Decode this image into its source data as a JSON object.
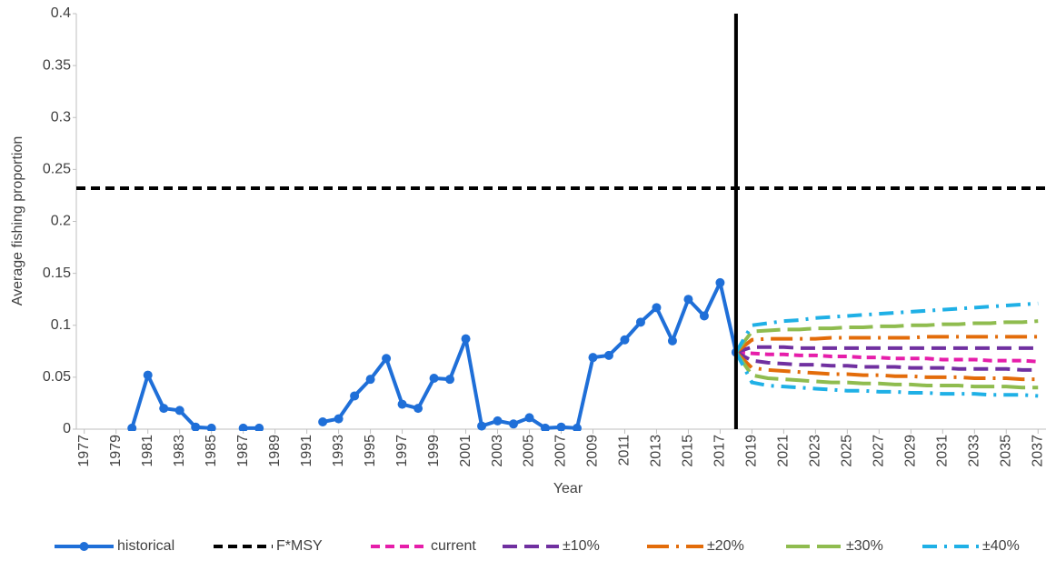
{
  "chart_data": {
    "type": "line",
    "x_label": "Year",
    "y_label": "Average fishing proportion",
    "xlim": [
      1976.5,
      2037.5
    ],
    "xticks": [
      1977,
      1979,
      1981,
      1983,
      1985,
      1987,
      1989,
      1991,
      1993,
      1995,
      1997,
      1999,
      2001,
      2003,
      2005,
      2007,
      2009,
      2011,
      2013,
      2015,
      2017,
      2019,
      2021,
      2023,
      2025,
      2027,
      2029,
      2031,
      2033,
      2035,
      2037
    ],
    "ylim": [
      0,
      0.4
    ],
    "yticks": [
      0,
      0.05,
      0.1,
      0.15,
      0.2,
      0.25,
      0.3,
      0.35,
      0.4
    ],
    "vline_x": 2018,
    "projection_x": [
      2018,
      2019,
      2020,
      2021,
      2022,
      2023,
      2024,
      2025,
      2026,
      2027,
      2028,
      2029,
      2030,
      2031,
      2032,
      2033,
      2034,
      2035,
      2036,
      2037
    ],
    "series": [
      {
        "name": "historical",
        "color": "#1f6fd8",
        "markers": true,
        "x": [
          1980,
          1981,
          1982,
          1983,
          1984,
          1985,
          1986,
          1987,
          1988,
          1989,
          1990,
          1991,
          1992,
          1993,
          1994,
          1995,
          1996,
          1997,
          1998,
          1999,
          2000,
          2001,
          2002,
          2003,
          2004,
          2005,
          2006,
          2007,
          2008,
          2009,
          2010,
          2011,
          2012,
          2013,
          2014,
          2015,
          2016,
          2017,
          2018
        ],
        "values": [
          0.001,
          0.052,
          0.02,
          0.018,
          0.002,
          0.001,
          null,
          0.001,
          0.001,
          null,
          null,
          null,
          0.007,
          0.01,
          0.032,
          0.048,
          0.068,
          0.024,
          0.02,
          0.049,
          0.048,
          0.087,
          0.003,
          0.008,
          0.005,
          0.011,
          0.001,
          0.002,
          0.001,
          0.069,
          0.071,
          0.086,
          0.103,
          0.117,
          0.085,
          0.125,
          0.109,
          0.141,
          0.074
        ]
      },
      {
        "name": "F*MSY",
        "color": "#000000",
        "dash": "10,6",
        "value": 0.232
      },
      {
        "name": "current",
        "color": "#e61eaa",
        "dash": "10,6",
        "values": [
          0.074,
          0.073,
          0.072,
          0.072,
          0.071,
          0.071,
          0.07,
          0.07,
          0.069,
          0.069,
          0.068,
          0.068,
          0.068,
          0.067,
          0.067,
          0.067,
          0.066,
          0.066,
          0.066,
          0.065
        ]
      },
      {
        "name": "±10%",
        "color": "#7030a0",
        "dash": "16,8",
        "values": [
          0.074,
          0.079,
          0.079,
          0.079,
          0.078,
          0.078,
          0.078,
          0.078,
          0.078,
          0.078,
          0.078,
          0.078,
          0.078,
          0.078,
          0.078,
          0.078,
          0.078,
          0.078,
          0.078,
          0.078
        ],
        "lower": [
          0.074,
          0.066,
          0.064,
          0.063,
          0.062,
          0.062,
          0.061,
          0.061,
          0.06,
          0.06,
          0.06,
          0.059,
          0.059,
          0.059,
          0.058,
          0.058,
          0.058,
          0.058,
          0.057,
          0.057
        ]
      },
      {
        "name": "±20%",
        "color": "#e36c0a",
        "dash": "24,8,3,8",
        "values": [
          0.074,
          0.086,
          0.087,
          0.087,
          0.087,
          0.087,
          0.088,
          0.088,
          0.088,
          0.088,
          0.088,
          0.088,
          0.089,
          0.089,
          0.089,
          0.089,
          0.089,
          0.089,
          0.089,
          0.089
        ],
        "lower": [
          0.074,
          0.059,
          0.057,
          0.056,
          0.055,
          0.054,
          0.053,
          0.053,
          0.052,
          0.052,
          0.051,
          0.051,
          0.05,
          0.05,
          0.05,
          0.049,
          0.049,
          0.049,
          0.048,
          0.048
        ]
      },
      {
        "name": "±30%",
        "color": "#8fbc4f",
        "dash": "26,8",
        "values": [
          0.074,
          0.094,
          0.095,
          0.096,
          0.096,
          0.097,
          0.097,
          0.098,
          0.098,
          0.099,
          0.099,
          0.1,
          0.1,
          0.101,
          0.101,
          0.102,
          0.102,
          0.103,
          0.103,
          0.104
        ],
        "lower": [
          0.074,
          0.052,
          0.049,
          0.048,
          0.047,
          0.046,
          0.045,
          0.045,
          0.044,
          0.044,
          0.043,
          0.043,
          0.042,
          0.042,
          0.042,
          0.041,
          0.041,
          0.041,
          0.04,
          0.04
        ]
      },
      {
        "name": "±40%",
        "color": "#1fb0e6",
        "dash": "16,8,3,8",
        "values": [
          0.074,
          0.1,
          0.102,
          0.104,
          0.105,
          0.107,
          0.108,
          0.109,
          0.11,
          0.111,
          0.112,
          0.113,
          0.114,
          0.115,
          0.116,
          0.117,
          0.118,
          0.119,
          0.12,
          0.121
        ],
        "lower": [
          0.074,
          0.045,
          0.042,
          0.041,
          0.04,
          0.039,
          0.038,
          0.037,
          0.037,
          0.036,
          0.036,
          0.035,
          0.035,
          0.034,
          0.034,
          0.034,
          0.033,
          0.033,
          0.033,
          0.032
        ]
      }
    ]
  }
}
